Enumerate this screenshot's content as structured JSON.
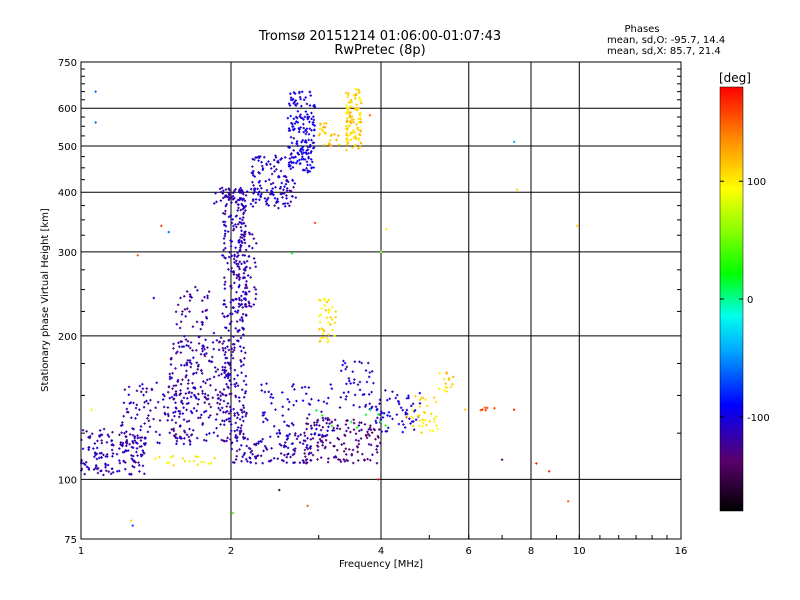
{
  "chart_data": {
    "type": "scatter",
    "title": "Tromsø 20151214 01:06:00-01:07:43",
    "subtitle": "RwPretec (8p)",
    "xlabel": "Frequency [MHz]",
    "ylabel": "Stationary phase Virtual Height [km]",
    "x_scale": "log",
    "y_scale": "log",
    "xlim": [
      1,
      16
    ],
    "ylim": [
      75,
      750
    ],
    "x_ticks": [
      1,
      2,
      4,
      6,
      8,
      10,
      16
    ],
    "x_tick_labels": [
      "1",
      "2",
      "4",
      "6",
      "8",
      "10",
      "16"
    ],
    "y_ticks": [
      75,
      100,
      200,
      300,
      400,
      500,
      600,
      750
    ],
    "y_tick_labels": [
      "75",
      "100",
      "200",
      "300",
      "400",
      "500",
      "600",
      "750"
    ],
    "y_minor_ticks": [
      125,
      150,
      175,
      225,
      250,
      275,
      325,
      350,
      375,
      425,
      450,
      475,
      525,
      550,
      575,
      625,
      650,
      675,
      700,
      725
    ],
    "grid": true,
    "legend": {
      "title": "Phases",
      "line_o": "mean, sd,O: -95.7, 14.4",
      "line_x": "mean, sd,X:  85.7, 21.4",
      "placement": "top-right"
    },
    "colorbar": {
      "unit_label": "[deg]",
      "range": [
        -180,
        180
      ],
      "ticks": [
        100,
        0,
        -100
      ],
      "tick_labels": [
        "100",
        "0",
        "-100"
      ]
    },
    "clusters": [
      {
        "f": [
          1.0,
          1.35
        ],
        "h": [
          102,
          128
        ],
        "phase": -115,
        "count": 160
      },
      {
        "f": [
          1.2,
          1.7
        ],
        "h": [
          118,
          160
        ],
        "phase": -115,
        "count": 120
      },
      {
        "f": [
          1.5,
          2.0
        ],
        "h": [
          120,
          200
        ],
        "phase": -118,
        "count": 170
      },
      {
        "f": [
          1.55,
          1.85
        ],
        "h": [
          150,
          255
        ],
        "phase": -118,
        "count": 80
      },
      {
        "f": [
          1.92,
          2.15
        ],
        "h": [
          120,
          410
        ],
        "phase": -115,
        "count": 340
      },
      {
        "f": [
          1.85,
          2.25
        ],
        "h": [
          370,
          410
        ],
        "phase": -115,
        "count": 40
      },
      {
        "f": [
          2.05,
          2.25
        ],
        "h": [
          230,
          330
        ],
        "phase": -115,
        "count": 60
      },
      {
        "f": [
          2.2,
          2.7
        ],
        "h": [
          370,
          480
        ],
        "phase": -110,
        "count": 130
      },
      {
        "f": [
          2.6,
          2.95
        ],
        "h": [
          440,
          650
        ],
        "phase": -100,
        "count": 170
      },
      {
        "f": [
          2.0,
          2.9
        ],
        "h": [
          108,
          125
        ],
        "phase": -115,
        "count": 110
      },
      {
        "f": [
          2.8,
          4.0
        ],
        "h": [
          108,
          135
        ],
        "phase": -130,
        "count": 150
      },
      {
        "f": [
          2.3,
          3.2
        ],
        "h": [
          122,
          160
        ],
        "phase": -105,
        "count": 70
      },
      {
        "f": [
          3.3,
          3.9
        ],
        "h": [
          140,
          178
        ],
        "phase": -112,
        "count": 45
      },
      {
        "f": [
          3.9,
          4.8
        ],
        "h": [
          125,
          155
        ],
        "phase": -105,
        "count": 60
      },
      {
        "f": [
          3.4,
          3.65
        ],
        "h": [
          490,
          660
        ],
        "phase": 110,
        "count": 110
      },
      {
        "f": [
          3.0,
          3.3
        ],
        "h": [
          500,
          560
        ],
        "phase": 115,
        "count": 25
      },
      {
        "f": [
          3.0,
          3.25
        ],
        "h": [
          190,
          240
        ],
        "phase": 105,
        "count": 40
      },
      {
        "f": [
          4.6,
          5.2
        ],
        "h": [
          125,
          150
        ],
        "phase": 100,
        "count": 35
      },
      {
        "f": [
          5.2,
          5.6
        ],
        "h": [
          152,
          168
        ],
        "phase": 110,
        "count": 15
      },
      {
        "f": [
          1.4,
          1.9
        ],
        "h": [
          106,
          112
        ],
        "phase": 95,
        "count": 20
      },
      {
        "f": [
          6.3,
          6.8
        ],
        "h": [
          139,
          142
        ],
        "phase": 160,
        "count": 6
      },
      {
        "f": [
          2.9,
          4.1
        ],
        "h": [
          128,
          140
        ],
        "phase": 20,
        "count": 10
      }
    ],
    "scattered_points": [
      {
        "f": 1.07,
        "h": 650,
        "phase": -60
      },
      {
        "f": 1.07,
        "h": 560,
        "phase": -60
      },
      {
        "f": 1.05,
        "h": 140,
        "phase": 90
      },
      {
        "f": 1.27,
        "h": 80,
        "phase": -70
      },
      {
        "f": 1.26,
        "h": 82,
        "phase": 110
      },
      {
        "f": 1.45,
        "h": 340,
        "phase": 160
      },
      {
        "f": 1.5,
        "h": 330,
        "phase": -60
      },
      {
        "f": 1.4,
        "h": 240,
        "phase": -100
      },
      {
        "f": 1.3,
        "h": 295,
        "phase": 150
      },
      {
        "f": 2.5,
        "h": 95,
        "phase": -150
      },
      {
        "f": 2.85,
        "h": 88,
        "phase": 150
      },
      {
        "f": 2.65,
        "h": 298,
        "phase": 20
      },
      {
        "f": 2.95,
        "h": 345,
        "phase": 160
      },
      {
        "f": 4.0,
        "h": 300,
        "phase": 40
      },
      {
        "f": 4.1,
        "h": 335,
        "phase": 100
      },
      {
        "f": 3.95,
        "h": 100,
        "phase": 180
      },
      {
        "f": 3.8,
        "h": 580,
        "phase": 150
      },
      {
        "f": 7.4,
        "h": 510,
        "phase": -40
      },
      {
        "f": 7.5,
        "h": 405,
        "phase": 110
      },
      {
        "f": 7.4,
        "h": 140,
        "phase": 170
      },
      {
        "f": 7.0,
        "h": 110,
        "phase": -140
      },
      {
        "f": 8.2,
        "h": 108,
        "phase": 170
      },
      {
        "f": 8.7,
        "h": 104,
        "phase": 170
      },
      {
        "f": 9.5,
        "h": 90,
        "phase": 150
      },
      {
        "f": 9.9,
        "h": 340,
        "phase": 110
      },
      {
        "f": 5.9,
        "h": 140,
        "phase": 110
      },
      {
        "f": 4.5,
        "h": 135,
        "phase": 150
      },
      {
        "f": 2.02,
        "h": 85,
        "phase": 40
      }
    ]
  }
}
